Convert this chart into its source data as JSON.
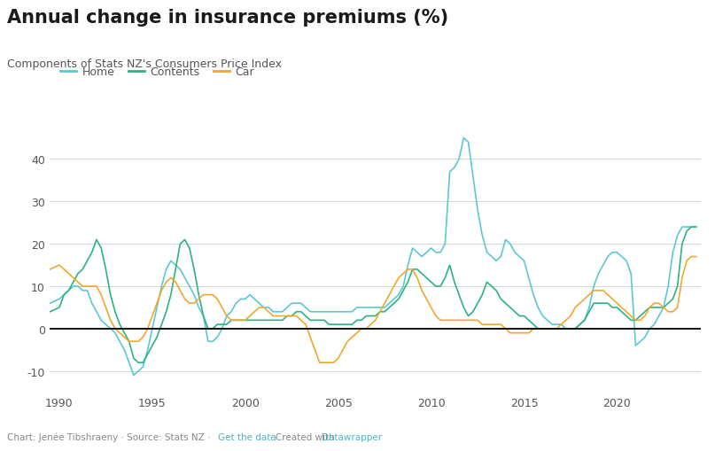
{
  "title": "Annual change in insurance premiums (%)",
  "subtitle": "Components of Stats NZ's Consumers Price Index",
  "legend_labels": [
    "Home",
    "Contents",
    "Car"
  ],
  "colors": {
    "Home": "#5bc8d5",
    "Contents": "#2db37e",
    "Car": "#f0a830"
  },
  "footer_gray": "Chart: Jenée Tibshraeny · Source: Stats NZ · ",
  "footer_blue1": "Get the data",
  "footer_mid": " · Created with ",
  "footer_blue2": "Datawrapper",
  "background": "#ffffff",
  "ylim": [
    -15,
    50
  ],
  "yticks": [
    -10,
    0,
    10,
    20,
    30,
    40
  ],
  "xlim_start": 1989.5,
  "xlim_end": 2024.5,
  "xticks": [
    1990,
    1995,
    2000,
    2005,
    2010,
    2015,
    2020
  ],
  "home_x": [
    1989.5,
    1990.0,
    1990.25,
    1990.5,
    1990.75,
    1991.0,
    1991.25,
    1991.5,
    1991.75,
    1992.0,
    1992.25,
    1992.5,
    1992.75,
    1993.0,
    1993.25,
    1993.5,
    1993.75,
    1994.0,
    1994.25,
    1994.5,
    1994.75,
    1995.0,
    1995.25,
    1995.5,
    1995.75,
    1996.0,
    1996.25,
    1996.5,
    1996.75,
    1997.0,
    1997.25,
    1997.5,
    1997.75,
    1998.0,
    1998.25,
    1998.5,
    1998.75,
    1999.0,
    1999.25,
    1999.5,
    1999.75,
    2000.0,
    2000.25,
    2000.5,
    2000.75,
    2001.0,
    2001.25,
    2001.5,
    2001.75,
    2002.0,
    2002.25,
    2002.5,
    2002.75,
    2003.0,
    2003.25,
    2003.5,
    2003.75,
    2004.0,
    2004.25,
    2004.5,
    2004.75,
    2005.0,
    2005.25,
    2005.5,
    2005.75,
    2006.0,
    2006.25,
    2006.5,
    2006.75,
    2007.0,
    2007.25,
    2007.5,
    2007.75,
    2008.0,
    2008.25,
    2008.5,
    2008.75,
    2009.0,
    2009.25,
    2009.5,
    2009.75,
    2010.0,
    2010.25,
    2010.5,
    2010.75,
    2011.0,
    2011.25,
    2011.5,
    2011.75,
    2012.0,
    2012.25,
    2012.5,
    2012.75,
    2013.0,
    2013.25,
    2013.5,
    2013.75,
    2014.0,
    2014.25,
    2014.5,
    2014.75,
    2015.0,
    2015.25,
    2015.5,
    2015.75,
    2016.0,
    2016.25,
    2016.5,
    2016.75,
    2017.0,
    2017.25,
    2017.5,
    2017.75,
    2018.0,
    2018.25,
    2018.5,
    2018.75,
    2019.0,
    2019.25,
    2019.5,
    2019.75,
    2020.0,
    2020.25,
    2020.5,
    2020.75,
    2021.0,
    2021.25,
    2021.5,
    2021.75,
    2022.0,
    2022.25,
    2022.5,
    2022.75,
    2023.0,
    2023.25,
    2023.5,
    2023.75,
    2024.0,
    2024.25
  ],
  "home_y": [
    6,
    7,
    8,
    9,
    10,
    10,
    9,
    9,
    6,
    4,
    2,
    1,
    0,
    -1,
    -3,
    -5,
    -8,
    -11,
    -10,
    -9,
    -5,
    0,
    5,
    10,
    14,
    16,
    15,
    14,
    12,
    10,
    8,
    5,
    3,
    -3,
    -3,
    -2,
    0,
    3,
    4,
    6,
    7,
    7,
    8,
    7,
    6,
    5,
    5,
    4,
    4,
    4,
    5,
    6,
    6,
    6,
    5,
    4,
    4,
    4,
    4,
    4,
    4,
    4,
    4,
    4,
    4,
    5,
    5,
    5,
    5,
    5,
    5,
    5,
    6,
    7,
    8,
    10,
    15,
    19,
    18,
    17,
    18,
    19,
    18,
    18,
    20,
    37,
    38,
    40,
    45,
    44,
    36,
    28,
    22,
    18,
    17,
    16,
    17,
    21,
    20,
    18,
    17,
    16,
    12,
    8,
    5,
    3,
    2,
    1,
    1,
    1,
    0,
    0,
    0,
    1,
    2,
    5,
    10,
    13,
    15,
    17,
    18,
    18,
    17,
    16,
    13,
    -4,
    -3,
    -2,
    0,
    1,
    3,
    5,
    10,
    18,
    22,
    24,
    24,
    24,
    24
  ],
  "contents_x": [
    1989.5,
    1990.0,
    1990.25,
    1990.5,
    1990.75,
    1991.0,
    1991.25,
    1991.5,
    1991.75,
    1992.0,
    1992.25,
    1992.5,
    1992.75,
    1993.0,
    1993.25,
    1993.5,
    1993.75,
    1994.0,
    1994.25,
    1994.5,
    1994.75,
    1995.0,
    1995.25,
    1995.5,
    1995.75,
    1996.0,
    1996.25,
    1996.5,
    1996.75,
    1997.0,
    1997.25,
    1997.5,
    1997.75,
    1998.0,
    1998.25,
    1998.5,
    1998.75,
    1999.0,
    1999.25,
    1999.5,
    1999.75,
    2000.0,
    2000.25,
    2000.5,
    2000.75,
    2001.0,
    2001.25,
    2001.5,
    2001.75,
    2002.0,
    2002.25,
    2002.5,
    2002.75,
    2003.0,
    2003.25,
    2003.5,
    2003.75,
    2004.0,
    2004.25,
    2004.5,
    2004.75,
    2005.0,
    2005.25,
    2005.5,
    2005.75,
    2006.0,
    2006.25,
    2006.5,
    2006.75,
    2007.0,
    2007.25,
    2007.5,
    2007.75,
    2008.0,
    2008.25,
    2008.5,
    2008.75,
    2009.0,
    2009.25,
    2009.5,
    2009.75,
    2010.0,
    2010.25,
    2010.5,
    2010.75,
    2011.0,
    2011.25,
    2011.5,
    2011.75,
    2012.0,
    2012.25,
    2012.5,
    2012.75,
    2013.0,
    2013.25,
    2013.5,
    2013.75,
    2014.0,
    2014.25,
    2014.5,
    2014.75,
    2015.0,
    2015.25,
    2015.5,
    2015.75,
    2016.0,
    2016.25,
    2016.5,
    2016.75,
    2017.0,
    2017.25,
    2017.5,
    2017.75,
    2018.0,
    2018.25,
    2018.5,
    2018.75,
    2019.0,
    2019.25,
    2019.5,
    2019.75,
    2020.0,
    2020.25,
    2020.5,
    2020.75,
    2021.0,
    2021.25,
    2021.5,
    2021.75,
    2022.0,
    2022.25,
    2022.5,
    2022.75,
    2023.0,
    2023.25,
    2023.5,
    2023.75,
    2024.0,
    2024.25
  ],
  "contents_y": [
    4,
    5,
    8,
    9,
    11,
    13,
    14,
    16,
    18,
    21,
    19,
    14,
    8,
    4,
    1,
    -1,
    -3,
    -7,
    -8,
    -8,
    -6,
    -4,
    -2,
    1,
    4,
    8,
    14,
    20,
    21,
    19,
    14,
    8,
    3,
    0,
    0,
    1,
    1,
    1,
    2,
    2,
    2,
    2,
    2,
    2,
    2,
    2,
    2,
    2,
    2,
    2,
    3,
    3,
    4,
    4,
    3,
    2,
    2,
    2,
    2,
    1,
    1,
    1,
    1,
    1,
    1,
    2,
    2,
    3,
    3,
    3,
    4,
    4,
    5,
    6,
    7,
    9,
    11,
    14,
    14,
    13,
    12,
    11,
    10,
    10,
    12,
    15,
    11,
    8,
    5,
    3,
    4,
    6,
    8,
    11,
    10,
    9,
    7,
    6,
    5,
    4,
    3,
    3,
    2,
    1,
    0,
    0,
    0,
    0,
    0,
    0,
    0,
    0,
    0,
    1,
    2,
    4,
    6,
    6,
    6,
    6,
    5,
    5,
    4,
    3,
    2,
    2,
    3,
    4,
    5,
    5,
    5,
    5,
    6,
    7,
    10,
    20,
    23,
    24,
    24
  ],
  "car_x": [
    1989.5,
    1990.0,
    1990.25,
    1990.5,
    1990.75,
    1991.0,
    1991.25,
    1991.5,
    1991.75,
    1992.0,
    1992.25,
    1992.5,
    1992.75,
    1993.0,
    1993.25,
    1993.5,
    1993.75,
    1994.0,
    1994.25,
    1994.5,
    1994.75,
    1995.0,
    1995.25,
    1995.5,
    1995.75,
    1996.0,
    1996.25,
    1996.5,
    1996.75,
    1997.0,
    1997.25,
    1997.5,
    1997.75,
    1998.0,
    1998.25,
    1998.5,
    1998.75,
    1999.0,
    1999.25,
    1999.5,
    1999.75,
    2000.0,
    2000.25,
    2000.5,
    2000.75,
    2001.0,
    2001.25,
    2001.5,
    2001.75,
    2002.0,
    2002.25,
    2002.5,
    2002.75,
    2003.0,
    2003.25,
    2003.5,
    2003.75,
    2004.0,
    2004.25,
    2004.5,
    2004.75,
    2005.0,
    2005.25,
    2005.5,
    2005.75,
    2006.0,
    2006.25,
    2006.5,
    2006.75,
    2007.0,
    2007.25,
    2007.5,
    2007.75,
    2008.0,
    2008.25,
    2008.5,
    2008.75,
    2009.0,
    2009.25,
    2009.5,
    2009.75,
    2010.0,
    2010.25,
    2010.5,
    2010.75,
    2011.0,
    2011.25,
    2011.5,
    2011.75,
    2012.0,
    2012.25,
    2012.5,
    2012.75,
    2013.0,
    2013.25,
    2013.5,
    2013.75,
    2014.0,
    2014.25,
    2014.5,
    2014.75,
    2015.0,
    2015.25,
    2015.5,
    2015.75,
    2016.0,
    2016.25,
    2016.5,
    2016.75,
    2017.0,
    2017.25,
    2017.5,
    2017.75,
    2018.0,
    2018.25,
    2018.5,
    2018.75,
    2019.0,
    2019.25,
    2019.5,
    2019.75,
    2020.0,
    2020.25,
    2020.5,
    2020.75,
    2021.0,
    2021.25,
    2021.5,
    2021.75,
    2022.0,
    2022.25,
    2022.5,
    2022.75,
    2023.0,
    2023.25,
    2023.5,
    2023.75,
    2024.0,
    2024.25
  ],
  "car_y": [
    14,
    15,
    14,
    13,
    12,
    11,
    10,
    10,
    10,
    10,
    8,
    5,
    2,
    0,
    -1,
    -2,
    -3,
    -3,
    -3,
    -2,
    0,
    3,
    6,
    9,
    11,
    12,
    11,
    9,
    7,
    6,
    6,
    7,
    8,
    8,
    8,
    7,
    5,
    3,
    2,
    2,
    2,
    2,
    3,
    4,
    5,
    5,
    4,
    3,
    3,
    3,
    3,
    3,
    3,
    2,
    1,
    -2,
    -5,
    -8,
    -8,
    -8,
    -8,
    -7,
    -5,
    -3,
    -2,
    -1,
    0,
    0,
    1,
    2,
    4,
    6,
    8,
    10,
    12,
    13,
    14,
    14,
    12,
    9,
    7,
    5,
    3,
    2,
    2,
    2,
    2,
    2,
    2,
    2,
    2,
    2,
    1,
    1,
    1,
    1,
    1,
    0,
    -1,
    -1,
    -1,
    -1,
    -1,
    0,
    0,
    0,
    0,
    0,
    0,
    1,
    2,
    3,
    5,
    6,
    7,
    8,
    9,
    9,
    9,
    8,
    7,
    6,
    5,
    4,
    3,
    2,
    2,
    3,
    5,
    6,
    6,
    5,
    4,
    4,
    5,
    12,
    16,
    17,
    17
  ]
}
